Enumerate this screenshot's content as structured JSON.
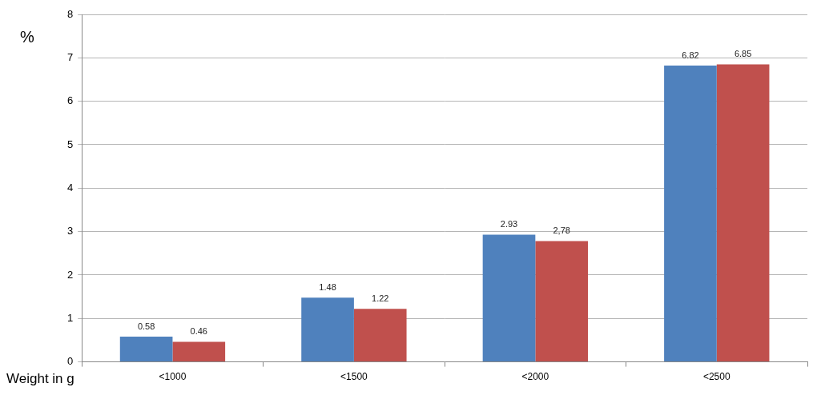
{
  "chart_data": {
    "type": "bar",
    "xlabel": "Weight in g",
    "ylabel": "%",
    "categories": [
      "<1000",
      "<1500",
      "<2000",
      "<2500"
    ],
    "series": [
      {
        "color": "#4f81bd",
        "values": [
          0.58,
          1.48,
          2.93,
          6.82
        ]
      },
      {
        "color": "#c0504d",
        "values": [
          0.46,
          1.22,
          2.78,
          6.85
        ],
        "value_labels": [
          "0.46",
          "1.22",
          "2,78",
          "6.85"
        ]
      }
    ],
    "ylim": [
      0,
      8
    ],
    "yticks": [
      0,
      1,
      2,
      3,
      4,
      5,
      6,
      7,
      8
    ],
    "grid": true,
    "data_labels": true
  }
}
